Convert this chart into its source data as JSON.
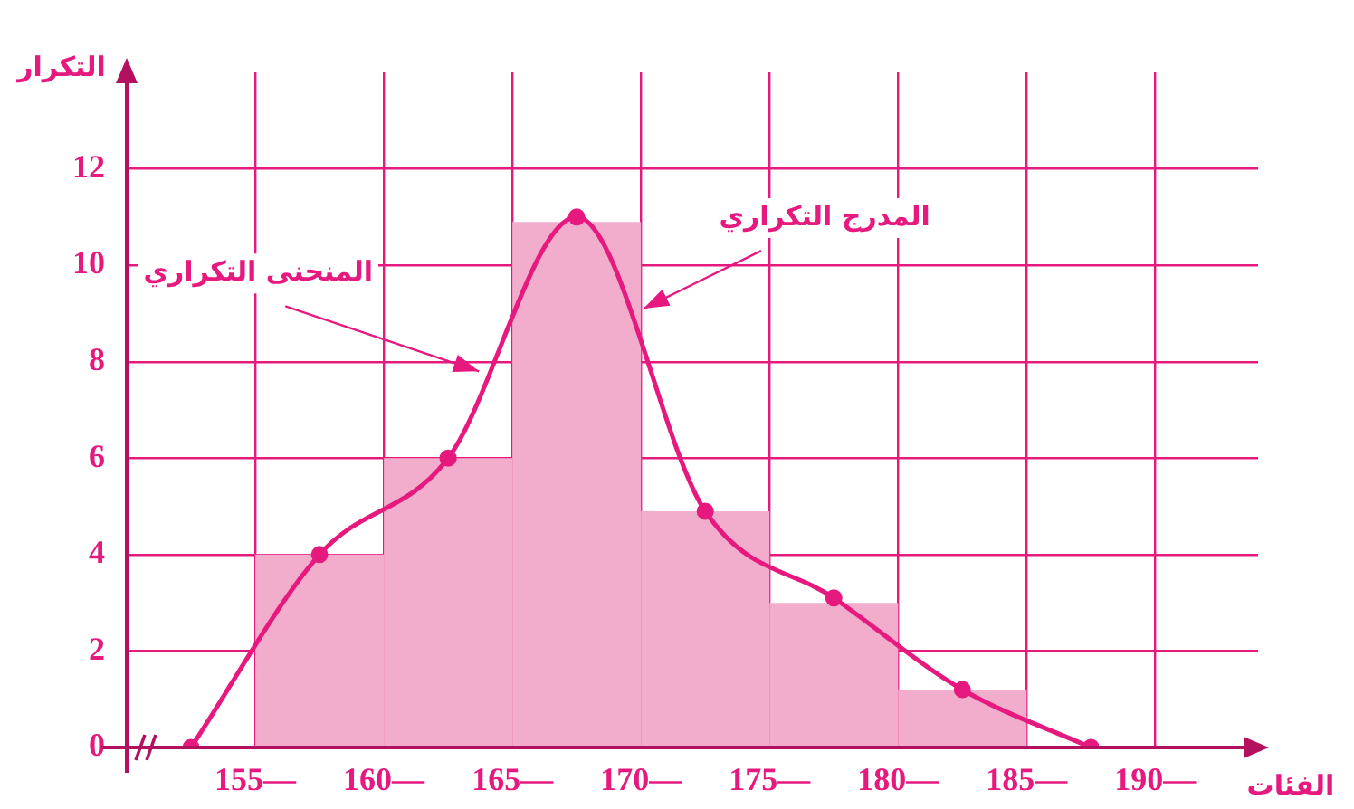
{
  "chart_data": {
    "type": "histogram",
    "xlabel": "الفئات",
    "ylabel": "التكرار",
    "bins": [
      155,
      160,
      165,
      170,
      175,
      180,
      185
    ],
    "values": [
      4,
      6,
      10.9,
      4.9,
      3,
      1.2
    ],
    "color": "#f2accc",
    "series": [
      {
        "type": "line",
        "x": [
          152.5,
          157.5,
          162.5,
          167.5,
          172.5,
          177.5,
          182.5,
          187.5
        ],
        "values": [
          0,
          4,
          6,
          11,
          4.9,
          3.1,
          1.2,
          0
        ],
        "color": "#e6197f"
      }
    ],
    "marker": "circle",
    "line_style": "solid",
    "grid": true,
    "xlim": [
      150,
      194
    ],
    "ylim": [
      0,
      14
    ],
    "xticks": [
      {
        "value": 155,
        "label": "155—"
      },
      {
        "value": 160,
        "label": "160—"
      },
      {
        "value": 165,
        "label": "165—"
      },
      {
        "value": 170,
        "label": "170—"
      },
      {
        "value": 175,
        "label": "175—"
      },
      {
        "value": 180,
        "label": "180—"
      },
      {
        "value": 185,
        "label": "185—"
      },
      {
        "value": 190,
        "label": "190—"
      }
    ],
    "yticks": [
      0,
      2,
      4,
      6,
      8,
      10,
      12
    ],
    "annotations": [
      {
        "text": "المنحنى التكراري",
        "x": 163.7,
        "y": 7.8
      },
      {
        "text": "المدرج التكراري",
        "x": 170.1,
        "y": 9.1
      }
    ]
  }
}
